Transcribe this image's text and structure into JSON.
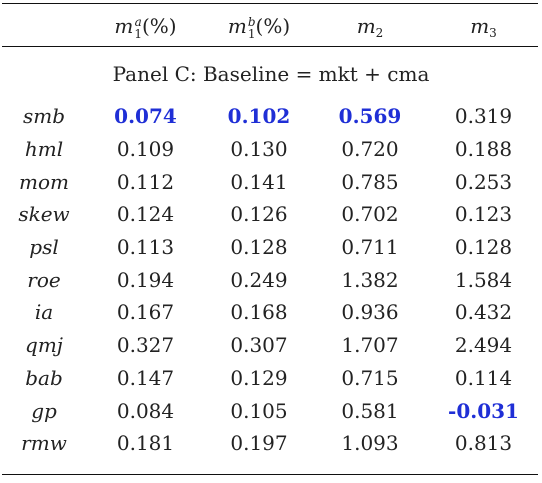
{
  "table": {
    "headers": [
      {
        "base": "m",
        "sub": "1",
        "sup": "a",
        "suffix": "(%)"
      },
      {
        "base": "m",
        "sub": "1",
        "sup": "b",
        "suffix": "(%)"
      },
      {
        "base": "m",
        "sub": "2",
        "sup": "",
        "suffix": ""
      },
      {
        "base": "m",
        "sub": "3",
        "sup": "",
        "suffix": ""
      }
    ],
    "panel_title": "Panel C: Baseline = mkt + cma",
    "highlight_color": "#1f2fd6",
    "rows": [
      {
        "label": "smb",
        "values": [
          "0.074",
          "0.102",
          "0.569",
          "0.319"
        ],
        "highlight": [
          true,
          true,
          true,
          false
        ]
      },
      {
        "label": "hml",
        "values": [
          "0.109",
          "0.130",
          "0.720",
          "0.188"
        ],
        "highlight": [
          false,
          false,
          false,
          false
        ]
      },
      {
        "label": "mom",
        "values": [
          "0.112",
          "0.141",
          "0.785",
          "0.253"
        ],
        "highlight": [
          false,
          false,
          false,
          false
        ]
      },
      {
        "label": "skew",
        "values": [
          "0.124",
          "0.126",
          "0.702",
          "0.123"
        ],
        "highlight": [
          false,
          false,
          false,
          false
        ]
      },
      {
        "label": "psl",
        "values": [
          "0.113",
          "0.128",
          "0.711",
          "0.128"
        ],
        "highlight": [
          false,
          false,
          false,
          false
        ]
      },
      {
        "label": "roe",
        "values": [
          "0.194",
          "0.249",
          "1.382",
          "1.584"
        ],
        "highlight": [
          false,
          false,
          false,
          false
        ]
      },
      {
        "label": "ia",
        "values": [
          "0.167",
          "0.168",
          "0.936",
          "0.432"
        ],
        "highlight": [
          false,
          false,
          false,
          false
        ]
      },
      {
        "label": "qmj",
        "values": [
          "0.327",
          "0.307",
          "1.707",
          "2.494"
        ],
        "highlight": [
          false,
          false,
          false,
          false
        ]
      },
      {
        "label": "bab",
        "values": [
          "0.147",
          "0.129",
          "0.715",
          "0.114"
        ],
        "highlight": [
          false,
          false,
          false,
          false
        ]
      },
      {
        "label": "gp",
        "values": [
          "0.084",
          "0.105",
          "0.581",
          "-0.031"
        ],
        "highlight": [
          false,
          false,
          false,
          true
        ]
      },
      {
        "label": "rmw",
        "values": [
          "0.181",
          "0.197",
          "1.093",
          "0.813"
        ],
        "highlight": [
          false,
          false,
          false,
          false
        ]
      }
    ]
  }
}
